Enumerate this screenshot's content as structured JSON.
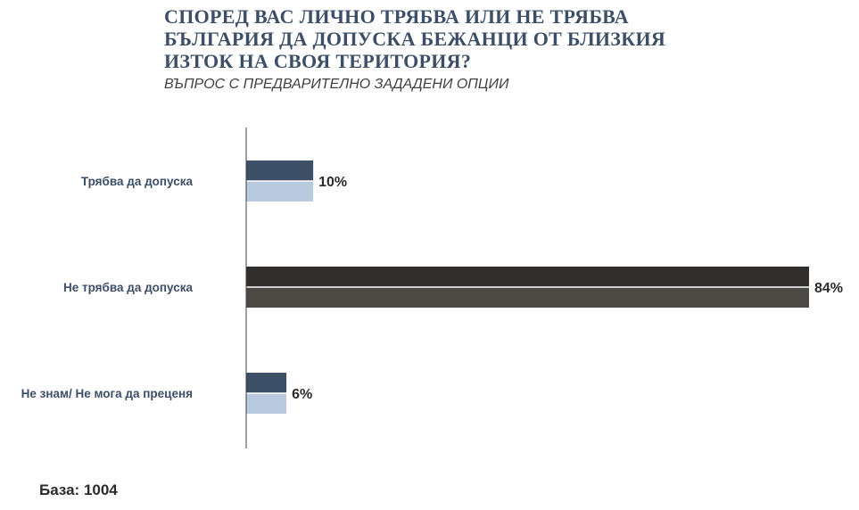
{
  "chart_data": {
    "type": "bar",
    "orientation": "horizontal",
    "title": "СПОРЕД ВАС ЛИЧНО ТРЯБВА ИЛИ НЕ ТРЯБВА БЪЛГАРИЯ ДА ДОПУСКА БЕЖАНЦИ ОТ БЛИЗКИЯ ИЗТОК НА СВОЯ ТЕРИТОРИЯ?",
    "subtitle": "ВЪПРОС С ПРЕДВАРИТЕЛНО ЗАДАДЕНИ ОПЦИИ",
    "categories": [
      "Трябва да допуска",
      "Не трябва да допуска",
      "Не знам/ Не мога да преценя"
    ],
    "values": [
      10,
      84,
      6
    ],
    "value_labels": [
      "10%",
      "84%",
      "6%"
    ],
    "unit": "%",
    "xlim": [
      0,
      84
    ],
    "grid": false,
    "legend": "none",
    "colors": [
      {
        "top": "#3c4f66",
        "bottom": "#b9cade"
      },
      {
        "top": "#312e2c",
        "bottom": "#4d4945"
      },
      {
        "top": "#3c4f66",
        "bottom": "#b9cade"
      }
    ],
    "axis_color": "#404040"
  },
  "footer": {
    "base_note": "База: 1004"
  }
}
